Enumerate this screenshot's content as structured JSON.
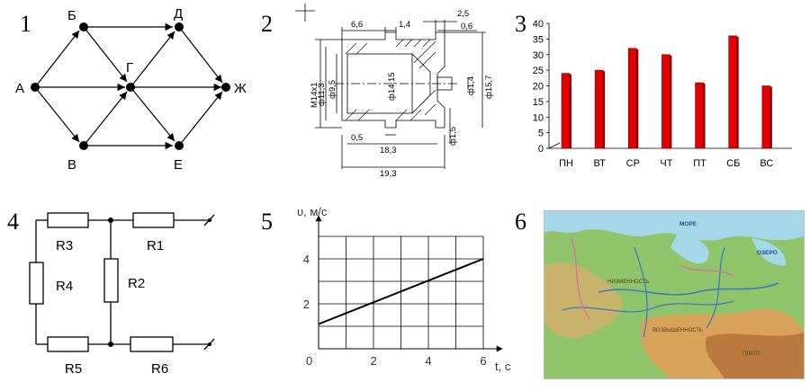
{
  "numbers": [
    "1",
    "2",
    "3",
    "4",
    "5",
    "6"
  ],
  "graph": {
    "nodes": [
      "А",
      "Б",
      "В",
      "Г",
      "Д",
      "Е",
      "Ж"
    ]
  },
  "drawing": {
    "dims_top": [
      "6,6",
      "1,4",
      "2,5",
      "0,6"
    ],
    "dims_left": [
      "M14x1",
      "ф11,3",
      "ф9,5"
    ],
    "dims_center": "ф14,15",
    "dims_right": [
      "ф1,4",
      "ф15,7"
    ],
    "dims_bottom": [
      "0,5",
      "18,3",
      "19,3"
    ],
    "dims_small": "ф1,5"
  },
  "chart_data": {
    "type": "bar",
    "categories": [
      "ПН",
      "ВТ",
      "СР",
      "ЧТ",
      "ПТ",
      "СБ",
      "ВС"
    ],
    "values": [
      24,
      25,
      32,
      30,
      21,
      36,
      20
    ],
    "ylim": [
      0,
      40
    ],
    "yticks": [
      "0",
      "5",
      "10",
      "15",
      "20",
      "25",
      "30",
      "35",
      "40"
    ],
    "bar_color": "#e00000"
  },
  "circuit": {
    "resistors": [
      "R3",
      "R1",
      "R4",
      "R2",
      "R5",
      "R6"
    ]
  },
  "velocity": {
    "ylabel": "υ, м/с",
    "xlabel": "t, с",
    "yticks": [
      "2",
      "4"
    ],
    "xticks": [
      "2",
      "4",
      "6"
    ],
    "origin": "0",
    "line": {
      "v0": 1.1,
      "v_end": 4,
      "t_end": 6
    }
  },
  "map": {
    "labels": [
      "МОРЕ",
      "ОЗЕРО",
      "НИЗМЕННОСТЬ",
      "ВОЗВЫШЕННОСТЬ",
      "ПЛАТО"
    ]
  }
}
